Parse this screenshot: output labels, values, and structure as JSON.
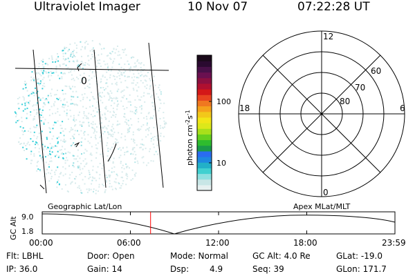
{
  "header": {
    "instrument": "Ultraviolet Imager",
    "date": "10 Nov 07",
    "time": "07:22:28 UT"
  },
  "image_panel": {
    "region_label": "0",
    "overlay": "Geographic Lat/Lon"
  },
  "colorbar": {
    "label": "photon cm-2s-1",
    "tick_labels": [
      "10",
      "100"
    ],
    "colors": [
      "#e6f0f0",
      "#c8e6e6",
      "#8fe0e0",
      "#40d0d0",
      "#22b0c8",
      "#1e88e0",
      "#2a6cf0",
      "#1a9a4a",
      "#2ebc2e",
      "#66d01e",
      "#a8e01a",
      "#dde81a",
      "#f2e618",
      "#f2c81a",
      "#f5a21c",
      "#f07820",
      "#e84420",
      "#d41818",
      "#b01030",
      "#8c1040",
      "#6a1050",
      "#481048",
      "#2a0a30",
      "#1a0a1a"
    ]
  },
  "polar_plot": {
    "mlt_labels": [
      "12",
      "18",
      "6",
      "0"
    ],
    "lat_labels": [
      "60",
      "70",
      "80"
    ],
    "overlay": "Apex MLat/MLT"
  },
  "altitude_plot": {
    "ylabel": "GC Alt",
    "y_ticks": [
      "9.0",
      "1.8"
    ],
    "x_ticks": [
      "00:00",
      "06:00",
      "12:00",
      "18:00",
      "23:59"
    ],
    "current_time_hours": 7.374,
    "marker_color": "#ff0000"
  },
  "status": {
    "flt": "Flt: LBHL",
    "ip": "IP: 36.0",
    "door": "Door: Open",
    "gain": "Gain: 14",
    "mode": "Mode: Normal",
    "dsp": "Dsp:",
    "dsp_value": "4.9",
    "gc_alt": "GC Alt: 4.0 Re",
    "seq": "Seq: 39",
    "glat": "GLat: -19.0",
    "glon": "GLon: 171.7"
  }
}
